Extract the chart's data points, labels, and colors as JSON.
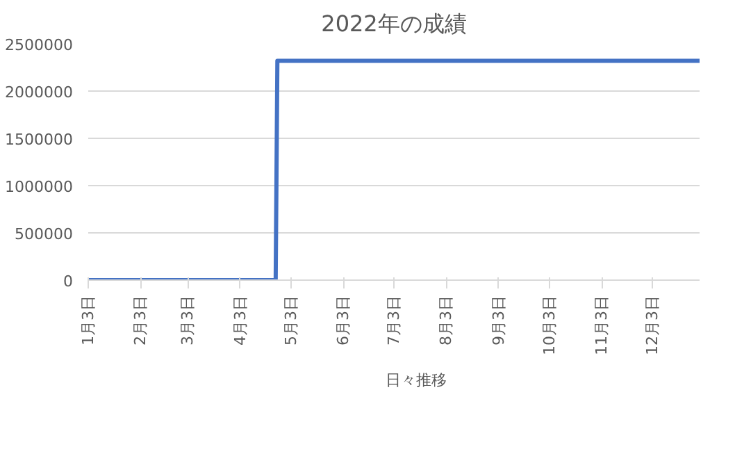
{
  "chart_data": {
    "type": "line",
    "title": "2022年の成績",
    "x": [
      "2022-01-03",
      "2022-04-24",
      "2022-04-25",
      "2022-12-31"
    ],
    "series": [
      {
        "name": "日々推移",
        "color": "#4472c4",
        "values": [
          0,
          0,
          2320000,
          2320000
        ]
      }
    ],
    "xlim": [
      "2022-01-03",
      "2022-12-31"
    ],
    "xticks": [
      {
        "value": "2022-01-03",
        "label": "1月3日"
      },
      {
        "value": "2022-02-03",
        "label": "2月3日"
      },
      {
        "value": "2022-03-03",
        "label": "3月3日"
      },
      {
        "value": "2022-04-03",
        "label": "4月3日"
      },
      {
        "value": "2022-05-03",
        "label": "5月3日"
      },
      {
        "value": "2022-06-03",
        "label": "6月3日"
      },
      {
        "value": "2022-07-03",
        "label": "7月3日"
      },
      {
        "value": "2022-08-03",
        "label": "8月3日"
      },
      {
        "value": "2022-09-03",
        "label": "9月3日"
      },
      {
        "value": "2022-10-03",
        "label": "10月3日"
      },
      {
        "value": "2022-11-03",
        "label": "11月3日"
      },
      {
        "value": "2022-12-03",
        "label": "12月3日"
      }
    ],
    "ylim": [
      0,
      2500000
    ],
    "yticks": [
      0,
      500000,
      1000000,
      1500000,
      2000000,
      2500000
    ],
    "grid": "y",
    "legend": "bottom",
    "marker": "none",
    "line_style": "solid"
  }
}
